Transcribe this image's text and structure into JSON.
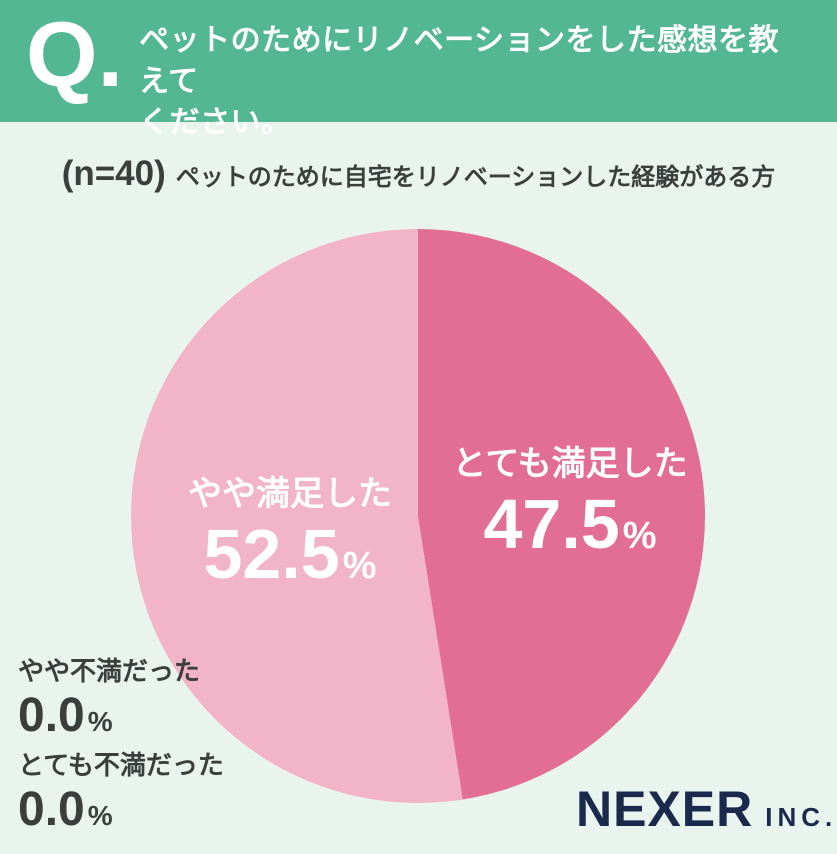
{
  "colors": {
    "header_bg": "#53B794",
    "page_bg": "#E9F4EF",
    "text_dark": "#3A3F3D",
    "brand_navy": "#1B2A4C",
    "pie_label_text": "#FFFFFF"
  },
  "header": {
    "q_mark": "Q.",
    "title_lines": [
      "ペットのためにリノベーションをした感想を教えて",
      "ください。"
    ]
  },
  "subtitle": {
    "n_label": "(n=40)",
    "description": "ペットのために自宅をリノベーションした経験がある方"
  },
  "chart_data": {
    "type": "pie",
    "n": 40,
    "start_angle_deg": 0,
    "direction": "clockwise",
    "legend_position": "labels-inside-pie-and-outside-left",
    "segments": [
      {
        "label": "とても満足した",
        "value": 47.5,
        "display_value": "47.5",
        "unit": "%",
        "color": "#E26D95",
        "label_color": "#FFFFFF",
        "in_pie": true
      },
      {
        "label": "やや満足した",
        "value": 52.5,
        "display_value": "52.5",
        "unit": "%",
        "color": "#F2B4C8",
        "label_color": "#FFFFFF",
        "in_pie": true
      },
      {
        "label": "やや不満だった",
        "value": 0.0,
        "display_value": "0.0",
        "unit": "%",
        "color": null,
        "in_pie": false
      },
      {
        "label": "とても不満だった",
        "value": 0.0,
        "display_value": "0.0",
        "unit": "%",
        "color": null,
        "in_pie": false
      }
    ]
  },
  "footer": {
    "brand_name": "NEXER",
    "brand_suffix": "INC."
  }
}
